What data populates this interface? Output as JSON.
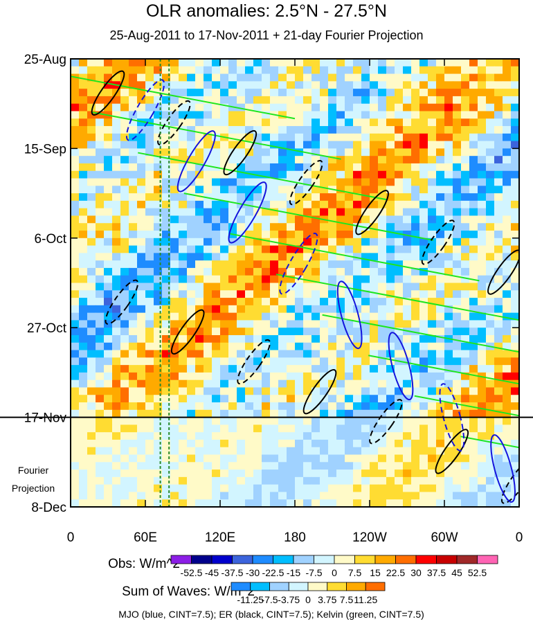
{
  "chart_data": {
    "type": "heatmap",
    "title": "OLR anomalies: 2.5°N - 27.5°N",
    "subtitle": "25-Aug-2011 to 17-Nov-2011 + 21-day Fourier Projection",
    "x_ticks": [
      {
        "lon": 0,
        "label": "0"
      },
      {
        "lon": 60,
        "label": "60E"
      },
      {
        "lon": 120,
        "label": "120E"
      },
      {
        "lon": 180,
        "label": "180"
      },
      {
        "lon": 240,
        "label": "120W"
      },
      {
        "lon": 300,
        "label": "60W"
      },
      {
        "lon": 360,
        "label": "0"
      }
    ],
    "xlim": [
      0,
      360
    ],
    "y_ticks": [
      {
        "day": 0,
        "label": "25-Aug"
      },
      {
        "day": 21,
        "label": "15-Sep"
      },
      {
        "day": 42,
        "label": "6-Oct"
      },
      {
        "day": 63,
        "label": "27-Oct"
      },
      {
        "day": 84,
        "label": "17-Nov"
      },
      {
        "day": 105,
        "label": "8-Dec"
      }
    ],
    "ylim_days": [
      0,
      105
    ],
    "projection_start_day": 84,
    "projection_label": [
      "Fourier",
      "Projection"
    ],
    "dashed_vertical_lons": [
      72,
      79
    ],
    "obs_colorbar": {
      "label": "Obs: W/m^2",
      "levels": [
        "-52.5",
        "-45",
        "-37.5",
        "-30",
        "-22.5",
        "-15",
        "-7.5",
        "0",
        "7.5",
        "15",
        "22.5",
        "30",
        "37.5",
        "45",
        "52.5"
      ],
      "colors": [
        "#8c1ee6",
        "#00008c",
        "#0000cd",
        "#3c64dc",
        "#1e8cff",
        "#00beff",
        "#a0d2ff",
        "#d2f5ff",
        "#fffac8",
        "#ffdc32",
        "#ffaa00",
        "#ff6e00",
        "#ff0000",
        "#c80000",
        "#a02828",
        "#ff64b4"
      ]
    },
    "waves_colorbar": {
      "label": "Sum of Waves: W/m^2",
      "levels": [
        "-11.25",
        "-7.5",
        "-3.75",
        "0",
        "3.75",
        "7.5",
        "11.25"
      ],
      "colors": [
        "#1e8cff",
        "#00beff",
        "#a0d2ff",
        "#d2f5ff",
        "#fffac8",
        "#ffdc32",
        "#ffaa00",
        "#ff6e00"
      ]
    },
    "contour_legend": "MJO (blue, CINT=7.5); ER (black, CINT=7.5); Kelvin (green, CINT=7.5)",
    "wave_colors": {
      "mjo": "#1414dc",
      "er": "#000000",
      "kelvin": "#1ee61e"
    }
  }
}
